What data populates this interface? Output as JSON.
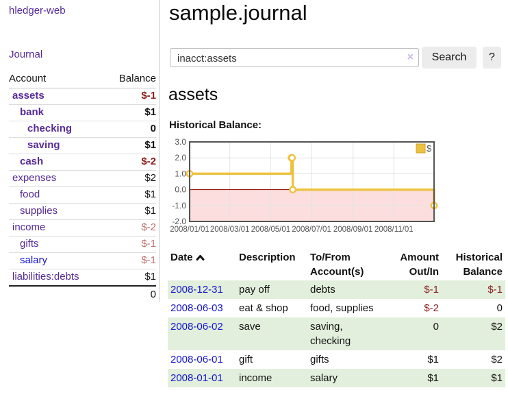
{
  "colors": {
    "link_purple": "#552a97",
    "link_blue": "#1414cc",
    "negative_strong": "#8b1a1a",
    "negative_soft": "#bd6f6f",
    "row_green": "#e2efdc",
    "button_gray": "#ececec",
    "series_yellow": "#edc240",
    "chart_negative_fill": "#fcdede",
    "chart_zero_line": "#8b0000",
    "chart_frame": "#545454"
  },
  "sidebar": {
    "app_title": "hledger-web",
    "journal_label": "Journal",
    "accounts_table": {
      "headers": {
        "account": "Account",
        "balance": "Balance"
      },
      "rows": [
        {
          "name": "assets",
          "balance": "$-1",
          "depth": 1,
          "bold": true,
          "balance_style": "negative-strong",
          "link_style": "visited"
        },
        {
          "name": "bank",
          "balance": "$1",
          "depth": 2,
          "bold": true,
          "balance_style": "normal",
          "link_style": "visited"
        },
        {
          "name": "checking",
          "balance": "0",
          "depth": 3,
          "bold": true,
          "balance_style": "normal",
          "link_style": "visited"
        },
        {
          "name": "saving",
          "balance": "$1",
          "depth": 3,
          "bold": true,
          "balance_style": "normal",
          "link_style": "visited"
        },
        {
          "name": "cash",
          "balance": "$-2",
          "depth": 2,
          "bold": true,
          "balance_style": "negative-strong",
          "link_style": "visited"
        },
        {
          "name": "expenses",
          "balance": "$2",
          "depth": 1,
          "bold": false,
          "balance_style": "normal",
          "link_style": "visited"
        },
        {
          "name": "food",
          "balance": "$1",
          "depth": 2,
          "bold": false,
          "balance_style": "normal",
          "link_style": "visited"
        },
        {
          "name": "supplies",
          "balance": "$1",
          "depth": 2,
          "bold": false,
          "balance_style": "normal",
          "link_style": "visited"
        },
        {
          "name": "income",
          "balance": "$-2",
          "depth": 1,
          "bold": false,
          "balance_style": "negative-soft",
          "link_style": "visited"
        },
        {
          "name": "gifts",
          "balance": "$-1",
          "depth": 2,
          "bold": false,
          "balance_style": "negative-soft",
          "link_style": "visited"
        },
        {
          "name": "salary",
          "balance": "$-1",
          "depth": 2,
          "bold": false,
          "balance_style": "negative-soft",
          "link_style": "unvisited"
        },
        {
          "name": "liabilities:debts",
          "balance": "$1",
          "depth": 1,
          "bold": false,
          "balance_style": "normal",
          "link_style": "visited"
        }
      ],
      "total": "0"
    }
  },
  "main": {
    "title": "sample.journal",
    "search": {
      "value": "inacct:assets",
      "clear_icon": "×",
      "button_label": "Search",
      "help_label": "?"
    },
    "account_heading": "assets",
    "chart_label": "Historical Balance:"
  },
  "chart_data": {
    "type": "line",
    "title": "Historical Balance:",
    "steps": true,
    "series": [
      {
        "name": "$",
        "color": "#edc240",
        "points": [
          [
            "2008/01/01",
            1
          ],
          [
            "2008/06/01",
            2
          ],
          [
            "2008/06/02",
            2
          ],
          [
            "2008/06/03",
            0
          ],
          [
            "2008/12/31",
            -1
          ]
        ]
      }
    ],
    "x_ticks": [
      "2008/01/01",
      "2008/03/01",
      "2008/05/01",
      "2008/07/01",
      "2008/09/01",
      "2008/11/01"
    ],
    "y_ticks": [
      "3.0",
      "2.0",
      "1.0",
      "0.0",
      "-1.0",
      "-2.0"
    ],
    "xlim": [
      "2008/01/01",
      "2008/12/31"
    ],
    "ylim": [
      -2,
      3
    ],
    "grid": true,
    "legend_position": "top-right",
    "negative_region_fill": "#fcdede",
    "zero_line_color": "#8b0000"
  },
  "register": {
    "headers": {
      "date": "Date",
      "description": "Description",
      "accounts": "To/From Account(s)",
      "amount": "Amount Out/In",
      "balance": "Historical Balance"
    },
    "rows": [
      {
        "date": "2008-12-31",
        "description": "pay off",
        "accounts": "debts",
        "amount": "$-1",
        "amount_negative": true,
        "balance": "$-1",
        "balance_negative": true
      },
      {
        "date": "2008-06-03",
        "description": "eat & shop",
        "accounts": "food, supplies",
        "amount": "$-2",
        "amount_negative": true,
        "balance": "0",
        "balance_negative": false
      },
      {
        "date": "2008-06-02",
        "description": "save",
        "accounts": "saving, checking",
        "amount": "0",
        "amount_negative": false,
        "balance": "$2",
        "balance_negative": false
      },
      {
        "date": "2008-06-01",
        "description": "gift",
        "accounts": "gifts",
        "amount": "$1",
        "amount_negative": false,
        "balance": "$2",
        "balance_negative": false
      },
      {
        "date": "2008-01-01",
        "description": "income",
        "accounts": "salary",
        "amount": "$1",
        "amount_negative": false,
        "balance": "$1",
        "balance_negative": false
      }
    ]
  }
}
